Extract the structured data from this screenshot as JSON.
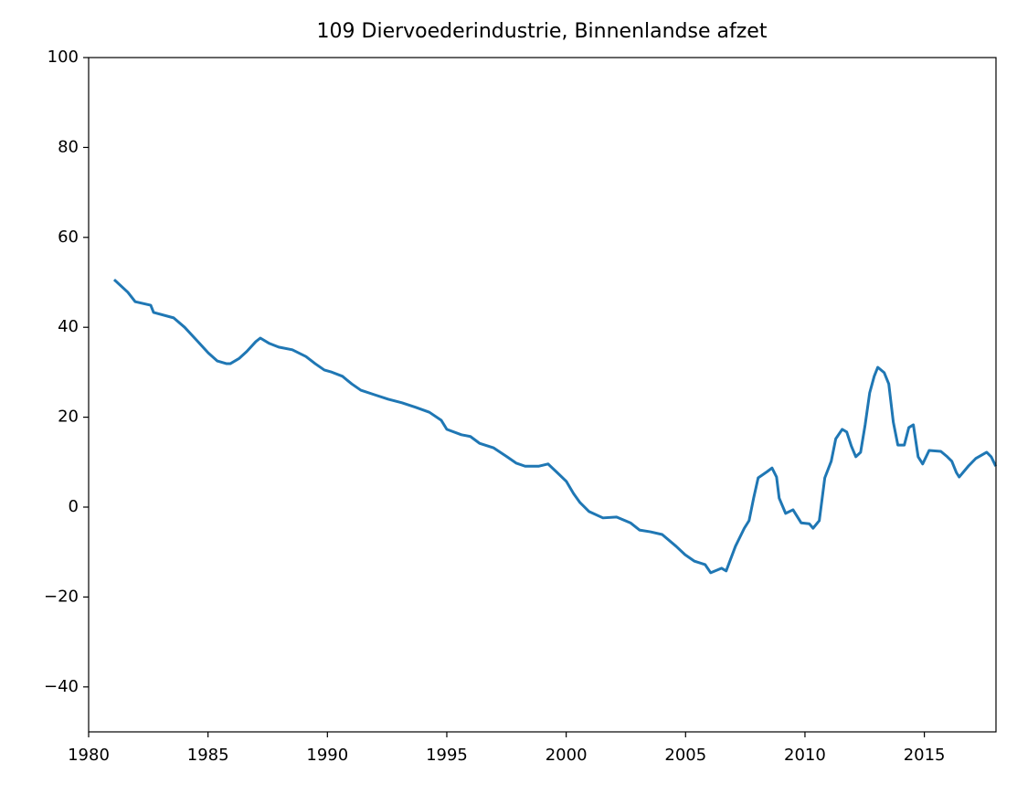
{
  "chart_data": {
    "type": "line",
    "title": "109 Diervoederindustrie, Binnenlandse afzet",
    "x": [
      1981.07,
      1981.64,
      1981.95,
      1982.6,
      1982.72,
      1983.56,
      1984.02,
      1984.51,
      1985.01,
      1985.39,
      1985.78,
      1985.93,
      1986.31,
      1986.62,
      1987.0,
      1987.19,
      1987.57,
      1987.96,
      1988.53,
      1989.1,
      1989.49,
      1989.87,
      1990.14,
      1990.63,
      1991.02,
      1991.4,
      1991.97,
      1992.55,
      1993.12,
      1993.7,
      1994.27,
      1994.77,
      1995.0,
      1995.61,
      1995.99,
      1996.37,
      1996.95,
      1997.52,
      1997.9,
      1998.28,
      1998.86,
      1999.24,
      1999.62,
      2000.01,
      2000.31,
      2000.58,
      2000.96,
      2001.54,
      2002.11,
      2002.69,
      2003.07,
      2003.53,
      2004.02,
      2004.6,
      2004.98,
      2005.36,
      2005.82,
      2006.05,
      2006.51,
      2006.7,
      2007.09,
      2007.46,
      2007.66,
      2007.85,
      2008.04,
      2008.42,
      2008.62,
      2008.81,
      2008.92,
      2009.19,
      2009.5,
      2009.84,
      2010.18,
      2010.34,
      2010.6,
      2010.83,
      2011.1,
      2011.29,
      2011.56,
      2011.75,
      2011.94,
      2012.13,
      2012.33,
      2012.52,
      2012.71,
      2012.9,
      2013.05,
      2013.32,
      2013.51,
      2013.7,
      2013.89,
      2014.16,
      2014.35,
      2014.54,
      2014.74,
      2014.93,
      2015.2,
      2015.69,
      2015.96,
      2016.15,
      2016.34,
      2016.46,
      2016.84,
      2017.15,
      2017.41,
      2017.61,
      2017.8,
      2017.99
    ],
    "values": [
      50.6,
      47.8,
      45.7,
      44.9,
      43.3,
      42.1,
      40.0,
      37.2,
      34.3,
      32.5,
      31.9,
      31.9,
      33.1,
      34.6,
      36.8,
      37.6,
      36.4,
      35.6,
      35.0,
      33.5,
      31.9,
      30.5,
      30.1,
      29.1,
      27.4,
      26.0,
      25.0,
      24.0,
      23.2,
      22.2,
      21.1,
      19.3,
      17.3,
      16.1,
      15.7,
      14.2,
      13.2,
      11.2,
      9.8,
      9.1,
      9.1,
      9.6,
      7.7,
      5.7,
      3.0,
      1.0,
      -1.0,
      -2.4,
      -2.2,
      -3.5,
      -5.1,
      -5.5,
      -6.1,
      -8.7,
      -10.6,
      -12.0,
      -12.8,
      -14.6,
      -13.6,
      -14.2,
      -8.7,
      -4.7,
      -3.0,
      2.0,
      6.5,
      7.9,
      8.7,
      6.7,
      2.0,
      -1.4,
      -0.6,
      -3.5,
      -3.7,
      -4.7,
      -3.0,
      6.5,
      10.2,
      15.2,
      17.3,
      16.7,
      13.6,
      11.2,
      12.2,
      18.3,
      25.4,
      29.1,
      31.1,
      29.9,
      27.4,
      18.9,
      13.8,
      13.8,
      17.7,
      18.3,
      11.2,
      9.6,
      12.6,
      12.4,
      11.2,
      10.2,
      7.7,
      6.7,
      9.1,
      10.8,
      11.6,
      12.2,
      11.2,
      9.1
    ],
    "color": "#1f77b4",
    "xlim": [
      1980,
      2018
    ],
    "xticks": [
      1980,
      1985,
      1990,
      1995,
      2000,
      2005,
      2010,
      2015
    ],
    "ylim": [
      -50,
      100
    ],
    "yticks": [
      {
        "value": -40,
        "label": "−40"
      },
      {
        "value": -20,
        "label": "−20"
      },
      0,
      20,
      40,
      60,
      80,
      100
    ]
  }
}
